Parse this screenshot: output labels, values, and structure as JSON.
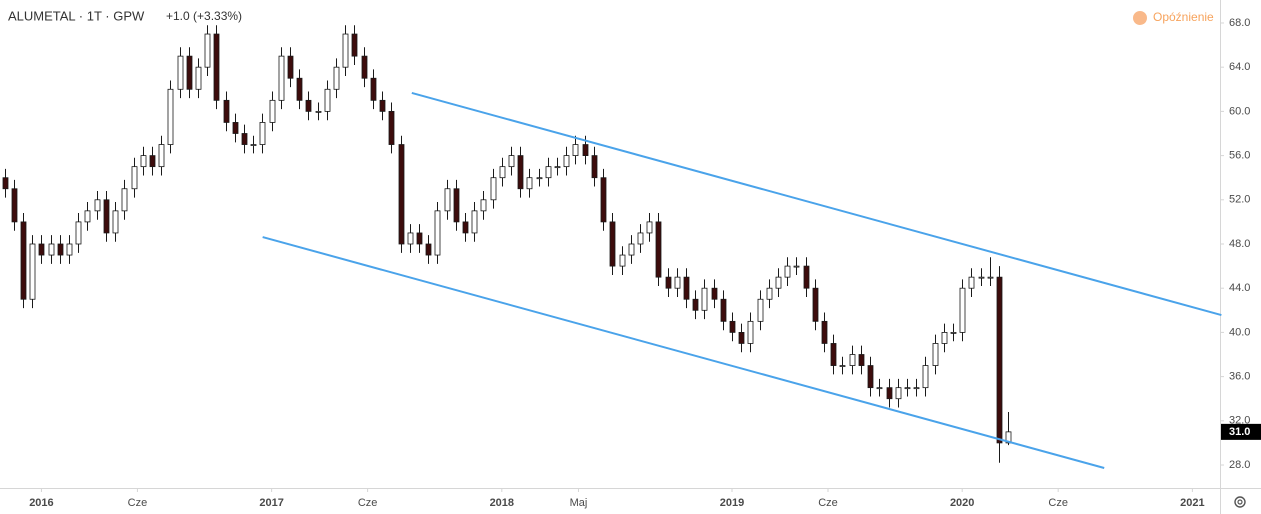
{
  "chart_data": {
    "type": "candlestick",
    "title": "ALUMETAL · 1T · GPW",
    "change": "+1.0 (+3.33%)",
    "status": "Opóźnienie",
    "up_color": "#ffffff",
    "down_color": "#3d0c0c",
    "outline_color": "#1a1a1a",
    "channel_color": "#4aa3ea",
    "grid": false,
    "xlim": [
      2015.82,
      2021.12
    ],
    "ylim": [
      25.92,
      70.08
    ],
    "xticks": [
      2016,
      {
        "value": 2016.417,
        "label": "Cze"
      },
      2017,
      {
        "value": 2017.417,
        "label": "Cze"
      },
      2018,
      {
        "value": 2018.333,
        "label": "Maj"
      },
      2019,
      {
        "value": 2019.417,
        "label": "Cze"
      },
      2020,
      {
        "value": 2020.417,
        "label": "Cze"
      },
      2021
    ],
    "yticks": [
      {
        "value": 28,
        "label": "28.0"
      },
      {
        "value": 32,
        "label": "32.0"
      },
      {
        "value": 36,
        "label": "36.0"
      },
      {
        "value": 40,
        "label": "40.0"
      },
      {
        "value": 44,
        "label": "44.0"
      },
      {
        "value": 48,
        "label": "48.0"
      },
      {
        "value": 52,
        "label": "52.0"
      },
      {
        "value": 56,
        "label": "56.0"
      },
      {
        "value": 60,
        "label": "60.0"
      },
      {
        "value": 64,
        "label": "64.0"
      },
      {
        "value": 68,
        "label": "68.0"
      }
    ],
    "last_price": {
      "value": 31,
      "label": "31.0"
    },
    "channel": [
      {
        "x": [
          2017.609,
          2021.126
        ],
        "y": [
          61.67,
          41.57
        ]
      },
      {
        "x": [
          2016.961,
          2020.617
        ],
        "y": [
          48.63,
          27.73
        ]
      }
    ],
    "x": [
      2015.84,
      2015.88,
      2015.92,
      2015.96,
      2016,
      2016.04,
      2016.08,
      2016.12,
      2016.16,
      2016.2,
      2016.24,
      2016.28,
      2016.32,
      2016.36,
      2016.4,
      2016.44,
      2016.48,
      2016.52,
      2016.56,
      2016.6,
      2016.64,
      2016.68,
      2016.72,
      2016.76,
      2016.8,
      2016.84,
      2016.88,
      2016.92,
      2016.96,
      2017,
      2017.04,
      2017.08,
      2017.12,
      2017.16,
      2017.2,
      2017.24,
      2017.28,
      2017.32,
      2017.36,
      2017.4,
      2017.44,
      2017.48,
      2017.52,
      2017.56,
      2017.6,
      2017.64,
      2017.68,
      2017.72,
      2017.76,
      2017.8,
      2017.84,
      2017.88,
      2017.92,
      2017.96,
      2018,
      2018.04,
      2018.08,
      2018.12,
      2018.16,
      2018.2,
      2018.24,
      2018.28,
      2018.32,
      2018.36,
      2018.4,
      2018.44,
      2018.48,
      2018.52,
      2018.56,
      2018.6,
      2018.64,
      2018.68,
      2018.72,
      2018.76,
      2018.8,
      2018.84,
      2018.88,
      2018.92,
      2018.96,
      2019,
      2019.04,
      2019.08,
      2019.12,
      2019.16,
      2019.2,
      2019.24,
      2019.28,
      2019.32,
      2019.36,
      2019.4,
      2019.44,
      2019.48,
      2019.52,
      2019.56,
      2019.6,
      2019.64,
      2019.68,
      2019.72,
      2019.76,
      2019.8,
      2019.84,
      2019.88,
      2019.92,
      2019.96,
      2020,
      2020.04,
      2020.08,
      2020.12,
      2020.16,
      2020.2
    ],
    "ohlc": [
      [
        54,
        54.8,
        52.2,
        53
      ],
      [
        53,
        53.8,
        49.2,
        50
      ],
      [
        50,
        50.8,
        42.2,
        43
      ],
      [
        43,
        48.8,
        42.2,
        48
      ],
      [
        48,
        48.8,
        46.2,
        47
      ],
      [
        47,
        48.8,
        46.2,
        48
      ],
      [
        48,
        48.8,
        46.2,
        47
      ],
      [
        47,
        48.8,
        46.2,
        48
      ],
      [
        48,
        50.8,
        47.2,
        50
      ],
      [
        50,
        51.8,
        49.2,
        51
      ],
      [
        51,
        52.8,
        50.2,
        52
      ],
      [
        52,
        52.8,
        48.2,
        49
      ],
      [
        49,
        51.8,
        48.2,
        51
      ],
      [
        51,
        53.8,
        50.2,
        53
      ],
      [
        53,
        55.8,
        52.2,
        55
      ],
      [
        55,
        56.8,
        54.2,
        56
      ],
      [
        56,
        56.8,
        54.2,
        55
      ],
      [
        55,
        57.8,
        54.2,
        57
      ],
      [
        57,
        62.8,
        56.2,
        62
      ],
      [
        62,
        65.8,
        61.2,
        65
      ],
      [
        65,
        65.8,
        61.2,
        62
      ],
      [
        62,
        64.8,
        61.2,
        64
      ],
      [
        64,
        67.8,
        63.2,
        67
      ],
      [
        67,
        67.8,
        60.2,
        61
      ],
      [
        61,
        61.8,
        58.2,
        59
      ],
      [
        59,
        59.8,
        57.2,
        58
      ],
      [
        58,
        58.8,
        56.2,
        57
      ],
      [
        57,
        57.8,
        56.2,
        57
      ],
      [
        57,
        59.8,
        56.2,
        59
      ],
      [
        59,
        61.8,
        58.2,
        61
      ],
      [
        61,
        65.8,
        60.2,
        65
      ],
      [
        65,
        65.8,
        62.2,
        63
      ],
      [
        63,
        63.8,
        60.2,
        61
      ],
      [
        61,
        61.8,
        59.2,
        60
      ],
      [
        60,
        60.8,
        59.2,
        60
      ],
      [
        60,
        62.8,
        59.2,
        62
      ],
      [
        62,
        64.8,
        61.2,
        64
      ],
      [
        64,
        67.8,
        63.2,
        67
      ],
      [
        67,
        67.8,
        64.2,
        65
      ],
      [
        65,
        65.8,
        62.2,
        63
      ],
      [
        63,
        63.8,
        60.2,
        61
      ],
      [
        61,
        61.8,
        59.2,
        60
      ],
      [
        60,
        60.8,
        56.2,
        57
      ],
      [
        57,
        57.8,
        47.2,
        48
      ],
      [
        48,
        49.8,
        47.2,
        49
      ],
      [
        49,
        49.8,
        47.2,
        48
      ],
      [
        48,
        48.8,
        46.2,
        47
      ],
      [
        47,
        51.8,
        46.2,
        51
      ],
      [
        51,
        53.8,
        50.2,
        53
      ],
      [
        53,
        53.8,
        49.2,
        50
      ],
      [
        50,
        50.8,
        48.2,
        49
      ],
      [
        49,
        51.8,
        48.2,
        51
      ],
      [
        51,
        52.8,
        50.2,
        52
      ],
      [
        52,
        54.8,
        51.2,
        54
      ],
      [
        54,
        55.8,
        53.2,
        55
      ],
      [
        55,
        56.8,
        54.2,
        56
      ],
      [
        56,
        56.8,
        52.2,
        53
      ],
      [
        53,
        54.8,
        52.2,
        54
      ],
      [
        54,
        54.8,
        53.2,
        54
      ],
      [
        54,
        55.8,
        53.2,
        55
      ],
      [
        55,
        55.8,
        54.2,
        55
      ],
      [
        55,
        56.8,
        54.2,
        56
      ],
      [
        56,
        57.8,
        55.2,
        57
      ],
      [
        57,
        57.8,
        55.2,
        56
      ],
      [
        56,
        56.8,
        53.2,
        54
      ],
      [
        54,
        54.8,
        49.2,
        50
      ],
      [
        50,
        50.8,
        45.2,
        46
      ],
      [
        46,
        47.8,
        45.2,
        47
      ],
      [
        47,
        48.8,
        46.2,
        48
      ],
      [
        48,
        49.8,
        47.2,
        49
      ],
      [
        49,
        50.8,
        48.2,
        50
      ],
      [
        50,
        50.8,
        44.2,
        45
      ],
      [
        45,
        45.8,
        43.2,
        44
      ],
      [
        44,
        45.8,
        43.2,
        45
      ],
      [
        45,
        45.8,
        42.2,
        43
      ],
      [
        43,
        43.8,
        41.2,
        42
      ],
      [
        42,
        44.8,
        41.2,
        44
      ],
      [
        44,
        44.8,
        42.2,
        43
      ],
      [
        43,
        43.8,
        40.2,
        41
      ],
      [
        41,
        41.8,
        39.2,
        40
      ],
      [
        40,
        40.8,
        38.2,
        39
      ],
      [
        39,
        41.8,
        38.2,
        41
      ],
      [
        41,
        43.8,
        40.2,
        43
      ],
      [
        43,
        44.8,
        42.2,
        44
      ],
      [
        44,
        45.8,
        43.2,
        45
      ],
      [
        45,
        46.8,
        44.2,
        46
      ],
      [
        46,
        46.8,
        45.2,
        46
      ],
      [
        46,
        46.8,
        43.2,
        44
      ],
      [
        44,
        44.8,
        40.2,
        41
      ],
      [
        41,
        41.8,
        38.2,
        39
      ],
      [
        39,
        39.8,
        36.2,
        37
      ],
      [
        37,
        37.8,
        36.2,
        37
      ],
      [
        37,
        38.8,
        36.2,
        38
      ],
      [
        38,
        38.8,
        36.2,
        37
      ],
      [
        37,
        37.8,
        34.2,
        35
      ],
      [
        35,
        35.8,
        34.2,
        35
      ],
      [
        35,
        35.8,
        33.2,
        34
      ],
      [
        34,
        35.8,
        33.2,
        35
      ],
      [
        35,
        35.8,
        34.2,
        35
      ],
      [
        35,
        35.8,
        34.2,
        35
      ],
      [
        35,
        37.8,
        34.2,
        37
      ],
      [
        37,
        39.8,
        36.2,
        39
      ],
      [
        39,
        40.8,
        38.2,
        40
      ],
      [
        40,
        40.8,
        39.2,
        40
      ],
      [
        40,
        44.8,
        39.2,
        44
      ],
      [
        44,
        45.8,
        43.2,
        45
      ],
      [
        45,
        45.8,
        44.2,
        45
      ],
      [
        45,
        46.8,
        44.2,
        45
      ],
      [
        45,
        46,
        28.2,
        30
      ],
      [
        30,
        32.8,
        29.8,
        31
      ]
    ]
  }
}
